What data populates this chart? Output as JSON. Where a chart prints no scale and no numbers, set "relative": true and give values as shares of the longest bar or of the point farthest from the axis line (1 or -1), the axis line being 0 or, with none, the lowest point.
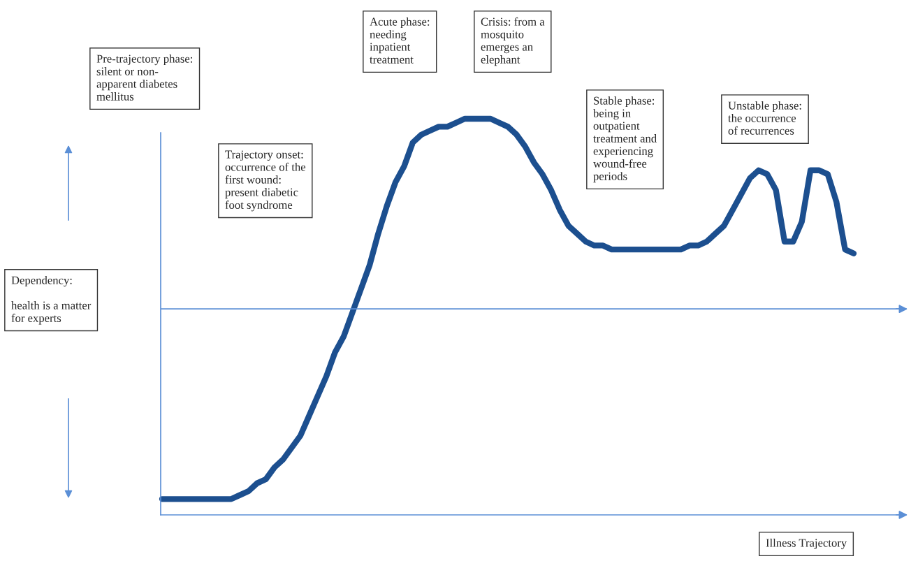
{
  "chart_data": {
    "type": "line",
    "relative": true,
    "xlabel": "Illness Trajectory",
    "categories": [
      null,
      null,
      null,
      null,
      null,
      null,
      null,
      null,
      null,
      null,
      null,
      null,
      null,
      null,
      null,
      null,
      null,
      null,
      null,
      null,
      null,
      null,
      null,
      null,
      null,
      null,
      null,
      null,
      null,
      null,
      null,
      null,
      null,
      null,
      null,
      null,
      null,
      null,
      null,
      null,
      null,
      null,
      null,
      null,
      null,
      null,
      null,
      null,
      null,
      null,
      null,
      null,
      null,
      null,
      null,
      null,
      null,
      null,
      null,
      null,
      null,
      null,
      null,
      null,
      null,
      null,
      null,
      null,
      null,
      null,
      null,
      null,
      null,
      null,
      null,
      null,
      null,
      null,
      null,
      null,
      null
    ],
    "series": [
      {
        "color": "#1c4f8f",
        "values": [
          0.04,
          0.04,
          0.04,
          0.04,
          0.04,
          0.04,
          0.04,
          0.04,
          0.04,
          0.05,
          0.06,
          0.08,
          0.09,
          0.12,
          0.14,
          0.17,
          0.2,
          0.25,
          0.3,
          0.35,
          0.41,
          0.45,
          0.51,
          0.57,
          0.63,
          0.71,
          0.78,
          0.84,
          0.88,
          0.94,
          0.96,
          0.97,
          0.98,
          0.98,
          0.99,
          1.0,
          1.0,
          1.0,
          1.0,
          0.99,
          0.98,
          0.96,
          0.93,
          0.89,
          0.86,
          0.82,
          0.77,
          0.73,
          0.71,
          0.69,
          0.68,
          0.68,
          0.67,
          0.67,
          0.67,
          0.67,
          0.67,
          0.67,
          0.67,
          0.67,
          0.67,
          0.68,
          0.68,
          0.69,
          0.71,
          0.73,
          0.77,
          0.81,
          0.85,
          0.87,
          0.86,
          0.82,
          0.69,
          0.69,
          0.74,
          0.87,
          0.87,
          0.86,
          0.79,
          0.67,
          0.66
        ]
      }
    ],
    "ref_lines": [
      {
        "axis": "y",
        "value": 0.52,
        "color": "#5b8fd6"
      }
    ],
    "annotations": [
      "Pre-trajectory phase:\nsilent or non-\napparent diabetes\nmellitus",
      "Trajectory onset:\noccurrence of the\nfirst wound:\npresent diabetic\nfoot syndrome",
      "Acute phase:\nneeding\ninpatient\ntreatment",
      "Crisis: from a\nmosquito\nemerges an\nelephant",
      "Stable phase:\nbeing in\noutpatient\ntreatment and\nexperiencing\nwound-free\nperiods",
      "Unstable phase:\nthe occurrence\nof recurrences",
      "Dependency:\n\nhealth is a matter\nfor experts"
    ],
    "legend": false,
    "tick_labels": false
  }
}
